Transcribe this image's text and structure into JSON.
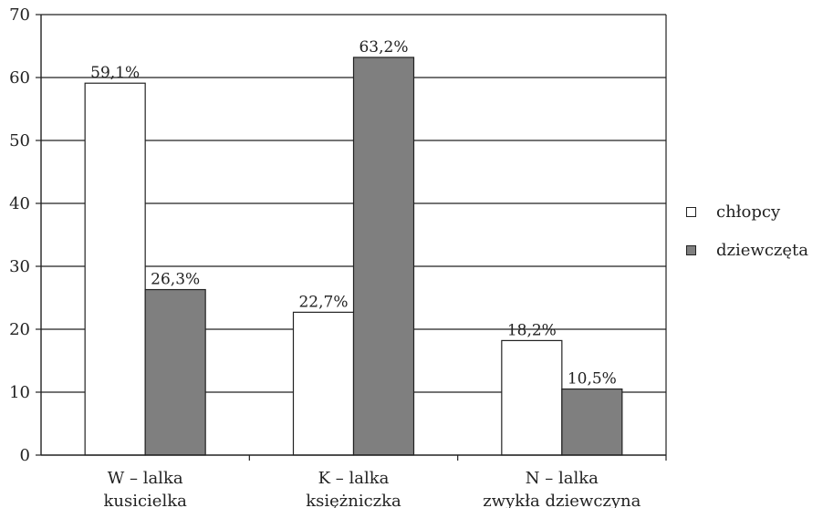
{
  "chart_data": {
    "type": "bar",
    "categories": [
      [
        "W – lalka",
        "kusicielka"
      ],
      [
        "K – lalka",
        "księżniczka"
      ],
      [
        "N – lalka",
        "zwykła dziewczyna"
      ]
    ],
    "series": [
      {
        "name": "chłopcy",
        "values": [
          59.1,
          22.7,
          18.2
        ],
        "labels": [
          "59,1%",
          "22,7%",
          "18,2%"
        ],
        "color": "#ffffff"
      },
      {
        "name": "dziewczęta",
        "values": [
          26.3,
          63.2,
          10.5
        ],
        "labels": [
          "26,3%",
          "63,2%",
          "10,5%"
        ],
        "color": "#7f7f7f"
      }
    ],
    "ylim": [
      0,
      70
    ],
    "yticks": [
      0,
      10,
      20,
      30,
      40,
      50,
      60,
      70
    ],
    "grid": true,
    "legend_position": "right"
  }
}
